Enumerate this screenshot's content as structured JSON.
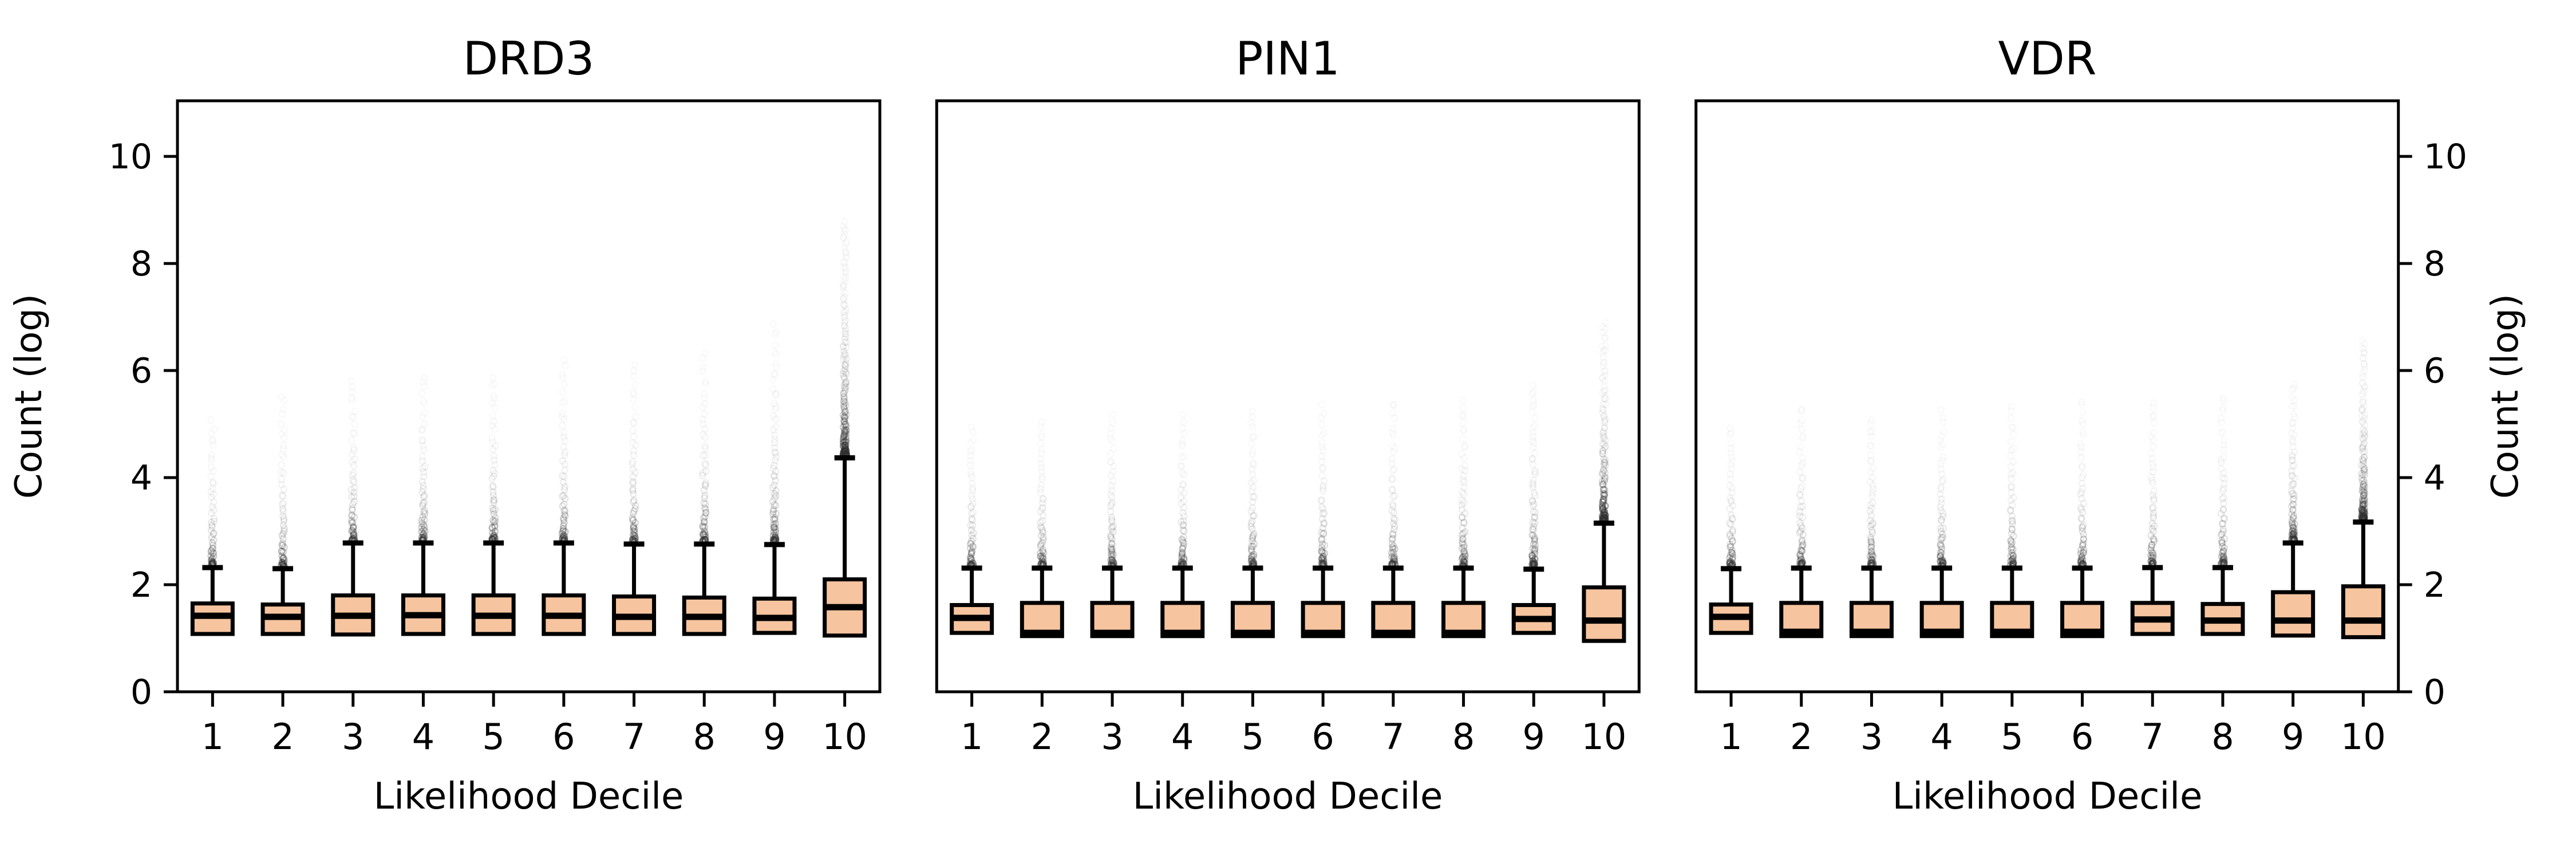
{
  "figure": {
    "background": "#ffffff",
    "box_fill": "#F6C49E",
    "box_edge": "#000000",
    "median_color": "#000000",
    "whisker_color": "#000000",
    "outlier_color": "#333333",
    "ylabel_left": "Count (log)",
    "ylabel_right": "Count (log)"
  },
  "chart_data": [
    {
      "type": "box",
      "title": "DRD3",
      "xlabel": "Likelihood Decile",
      "ylabel": "Count (log)",
      "categories": [
        "1",
        "2",
        "3",
        "4",
        "5",
        "6",
        "7",
        "8",
        "9",
        "10"
      ],
      "ylim": [
        0,
        11.04
      ],
      "yticks": [
        0,
        2,
        4,
        6,
        8,
        10
      ],
      "grid": false,
      "boxes": [
        {
          "q1": 1.08,
          "median": 1.42,
          "q3": 1.65,
          "whisker_high": 2.32,
          "outlier_max": 5.1,
          "outlier_n": 55
        },
        {
          "q1": 1.08,
          "median": 1.4,
          "q3": 1.63,
          "whisker_high": 2.3,
          "outlier_max": 5.6,
          "outlier_n": 55
        },
        {
          "q1": 1.07,
          "median": 1.42,
          "q3": 1.8,
          "whisker_high": 2.78,
          "outlier_max": 5.9,
          "outlier_n": 55
        },
        {
          "q1": 1.08,
          "median": 1.43,
          "q3": 1.8,
          "whisker_high": 2.78,
          "outlier_max": 6.0,
          "outlier_n": 55
        },
        {
          "q1": 1.08,
          "median": 1.42,
          "q3": 1.8,
          "whisker_high": 2.78,
          "outlier_max": 6.0,
          "outlier_n": 55
        },
        {
          "q1": 1.08,
          "median": 1.42,
          "q3": 1.8,
          "whisker_high": 2.78,
          "outlier_max": 6.3,
          "outlier_n": 55
        },
        {
          "q1": 1.08,
          "median": 1.4,
          "q3": 1.78,
          "whisker_high": 2.76,
          "outlier_max": 6.2,
          "outlier_n": 55
        },
        {
          "q1": 1.08,
          "median": 1.4,
          "q3": 1.76,
          "whisker_high": 2.76,
          "outlier_max": 6.4,
          "outlier_n": 60
        },
        {
          "q1": 1.1,
          "median": 1.38,
          "q3": 1.74,
          "whisker_high": 2.75,
          "outlier_max": 6.9,
          "outlier_n": 75
        },
        {
          "q1": 1.05,
          "median": 1.58,
          "q3": 2.1,
          "whisker_high": 4.37,
          "outlier_max": 8.8,
          "outlier_n": 170
        }
      ]
    },
    {
      "type": "box",
      "title": "PIN1",
      "xlabel": "Likelihood Decile",
      "ylabel": "Count (log)",
      "categories": [
        "1",
        "2",
        "3",
        "4",
        "5",
        "6",
        "7",
        "8",
        "9",
        "10"
      ],
      "ylim": [
        0,
        11.04
      ],
      "yticks": [
        0,
        2,
        4,
        6,
        8,
        10
      ],
      "grid": false,
      "boxes": [
        {
          "q1": 1.1,
          "median": 1.38,
          "q3": 1.62,
          "whisker_high": 2.31,
          "outlier_max": 5.0,
          "outlier_n": 55
        },
        {
          "q1": 1.04,
          "median": 1.1,
          "q3": 1.66,
          "whisker_high": 2.31,
          "outlier_max": 5.1,
          "outlier_n": 55
        },
        {
          "q1": 1.04,
          "median": 1.1,
          "q3": 1.66,
          "whisker_high": 2.31,
          "outlier_max": 5.2,
          "outlier_n": 55
        },
        {
          "q1": 1.04,
          "median": 1.1,
          "q3": 1.66,
          "whisker_high": 2.31,
          "outlier_max": 5.2,
          "outlier_n": 55
        },
        {
          "q1": 1.04,
          "median": 1.1,
          "q3": 1.66,
          "whisker_high": 2.31,
          "outlier_max": 5.3,
          "outlier_n": 55
        },
        {
          "q1": 1.04,
          "median": 1.1,
          "q3": 1.66,
          "whisker_high": 2.31,
          "outlier_max": 5.4,
          "outlier_n": 55
        },
        {
          "q1": 1.04,
          "median": 1.1,
          "q3": 1.66,
          "whisker_high": 2.31,
          "outlier_max": 5.5,
          "outlier_n": 55
        },
        {
          "q1": 1.04,
          "median": 1.1,
          "q3": 1.66,
          "whisker_high": 2.31,
          "outlier_max": 5.5,
          "outlier_n": 60
        },
        {
          "q1": 1.1,
          "median": 1.36,
          "q3": 1.62,
          "whisker_high": 2.29,
          "outlier_max": 5.8,
          "outlier_n": 75
        },
        {
          "q1": 0.95,
          "median": 1.33,
          "q3": 1.95,
          "whisker_high": 3.15,
          "outlier_max": 6.9,
          "outlier_n": 130
        }
      ]
    },
    {
      "type": "box",
      "title": "VDR",
      "xlabel": "Likelihood Decile",
      "ylabel": "Count (log)",
      "categories": [
        "1",
        "2",
        "3",
        "4",
        "5",
        "6",
        "7",
        "8",
        "9",
        "10"
      ],
      "ylim": [
        0,
        11.04
      ],
      "yticks": [
        0,
        2,
        4,
        6,
        8,
        10
      ],
      "grid": false,
      "boxes": [
        {
          "q1": 1.1,
          "median": 1.4,
          "q3": 1.63,
          "whisker_high": 2.3,
          "outlier_max": 5.0,
          "outlier_n": 55
        },
        {
          "q1": 1.04,
          "median": 1.12,
          "q3": 1.66,
          "whisker_high": 2.31,
          "outlier_max": 5.4,
          "outlier_n": 55
        },
        {
          "q1": 1.04,
          "median": 1.12,
          "q3": 1.66,
          "whisker_high": 2.31,
          "outlier_max": 5.2,
          "outlier_n": 55
        },
        {
          "q1": 1.04,
          "median": 1.12,
          "q3": 1.66,
          "whisker_high": 2.31,
          "outlier_max": 5.3,
          "outlier_n": 55
        },
        {
          "q1": 1.04,
          "median": 1.12,
          "q3": 1.66,
          "whisker_high": 2.31,
          "outlier_max": 5.4,
          "outlier_n": 55
        },
        {
          "q1": 1.04,
          "median": 1.12,
          "q3": 1.66,
          "whisker_high": 2.31,
          "outlier_max": 5.5,
          "outlier_n": 55
        },
        {
          "q1": 1.08,
          "median": 1.35,
          "q3": 1.66,
          "whisker_high": 2.32,
          "outlier_max": 5.5,
          "outlier_n": 55
        },
        {
          "q1": 1.08,
          "median": 1.33,
          "q3": 1.64,
          "whisker_high": 2.32,
          "outlier_max": 5.6,
          "outlier_n": 60
        },
        {
          "q1": 1.05,
          "median": 1.33,
          "q3": 1.86,
          "whisker_high": 2.78,
          "outlier_max": 5.8,
          "outlier_n": 75
        },
        {
          "q1": 1.02,
          "median": 1.33,
          "q3": 1.97,
          "whisker_high": 3.17,
          "outlier_max": 6.6,
          "outlier_n": 130
        }
      ]
    }
  ]
}
